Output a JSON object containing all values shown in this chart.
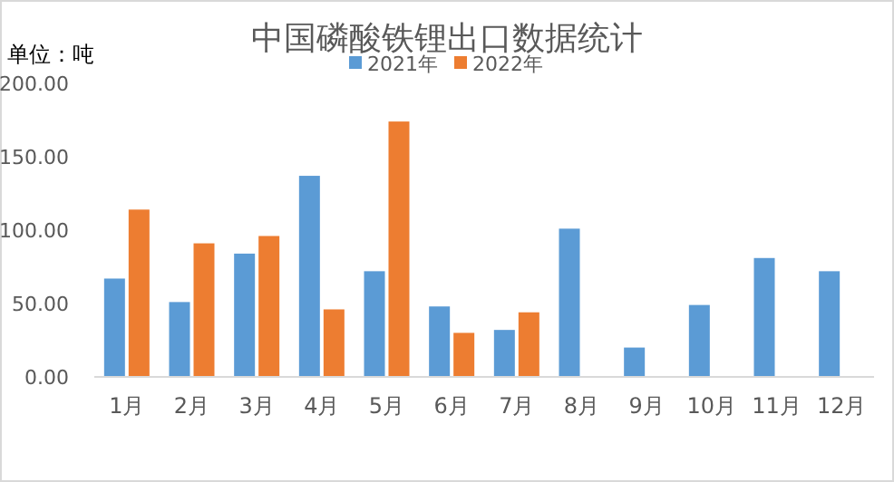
{
  "chart_data": {
    "type": "bar",
    "title": "中国磷酸铁锂出口数据统计",
    "ylabel": "单位：吨",
    "categories": [
      "1月",
      "2月",
      "3月",
      "4月",
      "5月",
      "6月",
      "7月",
      "8月",
      "9月",
      "10月",
      "11月",
      "12月"
    ],
    "series": [
      {
        "name": "2021年",
        "color": "#5b9bd5",
        "values": [
          67,
          51,
          84,
          137,
          72,
          48,
          32,
          101,
          20,
          49,
          81,
          72
        ]
      },
      {
        "name": "2022年",
        "color": "#ed7d31",
        "values": [
          114,
          91,
          96,
          46,
          174,
          30,
          44,
          null,
          null,
          null,
          null,
          null
        ]
      }
    ],
    "ylim": [
      0,
      200
    ],
    "yticks": [
      {
        "value": 0,
        "label": "0.00"
      },
      {
        "value": 50,
        "label": "50.00"
      },
      {
        "value": 100,
        "label": "100.00"
      },
      {
        "value": 150,
        "label": "150.00"
      },
      {
        "value": 200,
        "label": "200.00"
      }
    ],
    "legend": "top",
    "grid": false
  }
}
